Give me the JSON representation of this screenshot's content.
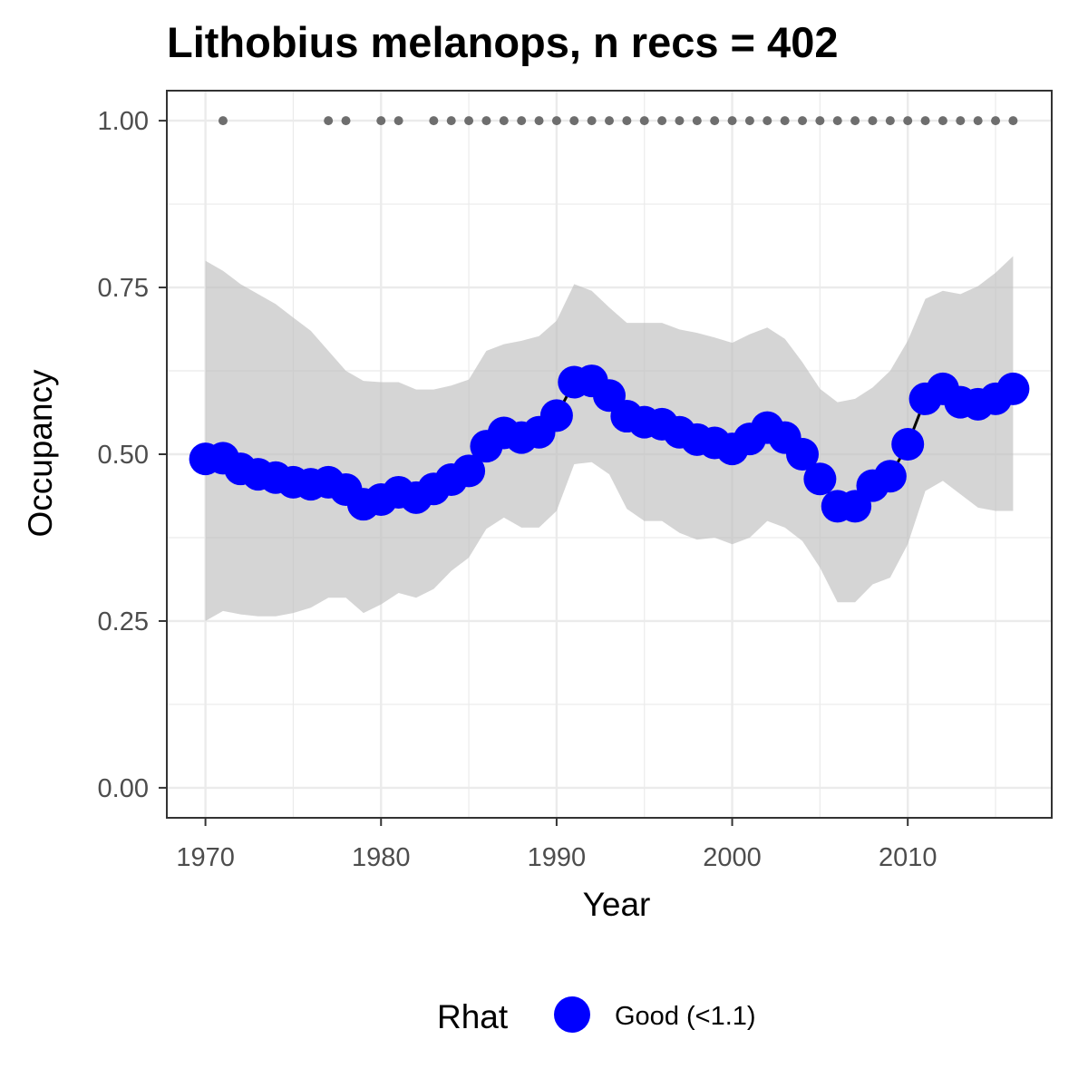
{
  "chart_data": {
    "type": "line",
    "title": "Lithobius melanops, n recs = 402",
    "xlabel": "Year",
    "ylabel": "Occupancy",
    "xlim": [
      1967.8,
      2018.2
    ],
    "ylim": [
      -0.045,
      1.045
    ],
    "x_ticks": [
      1970,
      1980,
      1990,
      2000,
      2010
    ],
    "x_tick_labels": [
      "1970",
      "1980",
      "1990",
      "2000",
      "2010"
    ],
    "y_ticks": [
      0,
      0.25,
      0.5,
      0.75,
      1
    ],
    "y_tick_labels": [
      "0.00",
      "0.25",
      "0.50",
      "0.75",
      "1.00"
    ],
    "grid": true,
    "legend": {
      "title": "Rhat",
      "position": "bottom",
      "entries": [
        {
          "label": "Good (<1.1)",
          "color": "#0000ff"
        }
      ]
    },
    "colors": {
      "points": "#0000ff",
      "line": "#000000",
      "ribbon": "#bfbfbf",
      "record_dots": "#6e6e6e",
      "grid": "#ebebeb",
      "panel_border": "#333333"
    },
    "x": [
      1970,
      1971,
      1972,
      1973,
      1974,
      1975,
      1976,
      1977,
      1978,
      1979,
      1980,
      1981,
      1982,
      1983,
      1984,
      1985,
      1986,
      1987,
      1988,
      1989,
      1990,
      1991,
      1992,
      1993,
      1994,
      1995,
      1996,
      1997,
      1998,
      1999,
      2000,
      2001,
      2002,
      2003,
      2004,
      2005,
      2006,
      2007,
      2008,
      2009,
      2010,
      2011,
      2012,
      2013,
      2014,
      2015,
      2016
    ],
    "series": [
      {
        "rhat": "Good (<1.1)",
        "values": [
          0.493,
          0.494,
          0.478,
          0.47,
          0.465,
          0.458,
          0.455,
          0.458,
          0.447,
          0.425,
          0.432,
          0.443,
          0.435,
          0.448,
          0.462,
          0.475,
          0.512,
          0.532,
          0.525,
          0.533,
          0.558,
          0.608,
          0.61,
          0.588,
          0.557,
          0.548,
          0.545,
          0.533,
          0.522,
          0.517,
          0.508,
          0.523,
          0.54,
          0.525,
          0.5,
          0.463,
          0.422,
          0.422,
          0.453,
          0.467,
          0.515,
          0.583,
          0.598,
          0.578,
          0.575,
          0.583,
          0.598
        ],
        "lower": [
          0.25,
          0.265,
          0.26,
          0.257,
          0.257,
          0.262,
          0.27,
          0.285,
          0.285,
          0.262,
          0.275,
          0.292,
          0.285,
          0.298,
          0.325,
          0.345,
          0.388,
          0.405,
          0.39,
          0.39,
          0.415,
          0.485,
          0.488,
          0.47,
          0.418,
          0.4,
          0.4,
          0.382,
          0.372,
          0.375,
          0.365,
          0.375,
          0.4,
          0.39,
          0.37,
          0.33,
          0.278,
          0.278,
          0.305,
          0.315,
          0.365,
          0.445,
          0.46,
          0.44,
          0.42,
          0.415,
          0.415
        ],
        "upper": [
          0.79,
          0.775,
          0.755,
          0.74,
          0.725,
          0.705,
          0.685,
          0.655,
          0.625,
          0.61,
          0.608,
          0.608,
          0.597,
          0.597,
          0.603,
          0.612,
          0.655,
          0.665,
          0.67,
          0.677,
          0.7,
          0.755,
          0.745,
          0.72,
          0.697,
          0.697,
          0.697,
          0.687,
          0.682,
          0.675,
          0.667,
          0.68,
          0.69,
          0.673,
          0.638,
          0.598,
          0.578,
          0.583,
          0.6,
          0.625,
          0.67,
          0.733,
          0.745,
          0.74,
          0.752,
          0.772,
          0.797
        ]
      }
    ],
    "record_years": [
      1971,
      1977,
      1978,
      1980,
      1981,
      1983,
      1984,
      1985,
      1986,
      1987,
      1988,
      1989,
      1990,
      1991,
      1992,
      1993,
      1994,
      1995,
      1996,
      1997,
      1998,
      1999,
      2000,
      2001,
      2002,
      2003,
      2004,
      2005,
      2006,
      2007,
      2008,
      2009,
      2010,
      2011,
      2012,
      2013,
      2014,
      2015,
      2016
    ],
    "record_value": 1
  }
}
